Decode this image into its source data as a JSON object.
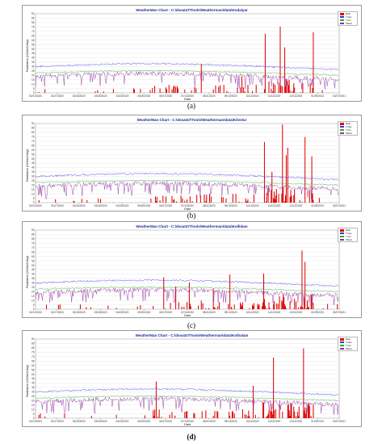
{
  "panels": [
    {
      "id": "a",
      "title": "WeatherMan Chart - C:\\dssat47\\Tools\\Weatherman\\data\\Kodaiyar",
      "caption": "(a)",
      "caption_bold": false,
      "seed": 11
    },
    {
      "id": "b",
      "title": "WeatherMan Chart - C:\\dssat47\\Tools\\Weatherman\\data\\Kilvelur",
      "caption": "(b)",
      "caption_bold": false,
      "seed": 23
    },
    {
      "id": "c",
      "title": "WeatherMan Chart - C:\\dssat47\\Tools\\Weatherman\\data\\Kollidam",
      "caption": "(c)",
      "caption_bold": false,
      "seed": 37
    },
    {
      "id": "d",
      "title": "WeatherMan Chart - C:\\dssat47\\Tools\\Weatherman\\data\\Kothalam",
      "caption": "(d)",
      "caption_bold": true,
      "seed": 51
    }
  ],
  "chart_data": {
    "type": "bar+line",
    "xlabel": "Date",
    "ylabel": "Radiation (MJ/m2/day)",
    "ylim": [
      0,
      90
    ],
    "yticks": [
      0,
      5,
      10,
      15,
      20,
      25,
      30,
      35,
      40,
      45,
      50,
      55,
      60,
      65,
      70,
      75,
      80,
      85,
      90
    ],
    "xticks": [
      "01/01/2020",
      "01/27/2020",
      "02/26/2020",
      "03/25/2020",
      "04/23/2020",
      "05/20/2020",
      "06/17/2020",
      "07/14/2020",
      "08/11/2020",
      "09/10/2020",
      "10/14/2020",
      "11/12/2020",
      "12/11/2020",
      "01/09/2021",
      "02/07/2021"
    ],
    "legend": [
      "Rain",
      "Tmax",
      "Tmin",
      "SRad"
    ],
    "legend_position": "top-right",
    "colors": {
      "Rain": "#e00000",
      "Tmax": "#3232e0",
      "Tmin": "#20b020",
      "SRad": "#9030a0"
    },
    "series_description": "Daily rainfall bars with temperature and solar radiation lines, Jan 2020 – Feb 2021"
  }
}
